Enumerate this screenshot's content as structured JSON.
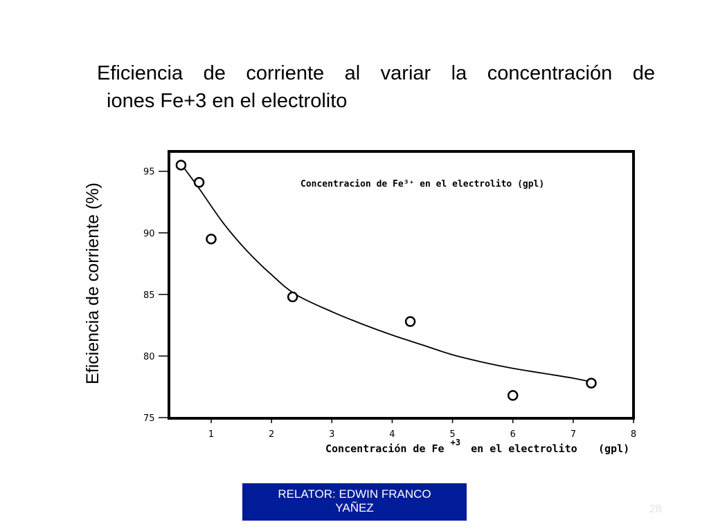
{
  "slide": {
    "title_line1": [
      "Eficiencia",
      "de",
      "corriente",
      "al",
      "variar",
      "la",
      "concentración",
      "de"
    ],
    "title_line2": "iones Fe+3 en el electrolito",
    "footer": [
      "RELATOR: EDWIN FRANCO",
      "YAÑEZ"
    ],
    "page_number": "28"
  },
  "chart_data": {
    "type": "scatter",
    "title": "Concentracion de Fe³⁺ en el electrolito (gpl)",
    "xlabel": "Concentración de Fe",
    "xlabel_superscript": "+3",
    "xlabel_suffix": "en el electrolito",
    "xlabel_unit": "(gpl)",
    "ylabel": "Eficiencia de corriente (%)",
    "xlim": [
      0.3,
      8
    ],
    "ylim": [
      75,
      96.5
    ],
    "x_ticks": [
      1,
      2,
      3,
      4,
      5,
      6,
      7,
      8
    ],
    "y_ticks": [
      75,
      80,
      85,
      90,
      95
    ],
    "grid": false,
    "series": [
      {
        "values": [
          {
            "x": 0.5,
            "y": 95.5
          },
          {
            "x": 0.8,
            "y": 94.1
          },
          {
            "x": 1.0,
            "y": 89.5
          },
          {
            "x": 2.35,
            "y": 84.8
          },
          {
            "x": 4.3,
            "y": 82.8
          },
          {
            "x": 6.0,
            "y": 76.8
          },
          {
            "x": 7.3,
            "y": 77.8
          }
        ]
      }
    ],
    "fit_curve": [
      {
        "x": 0.5,
        "y": 95.6
      },
      {
        "x": 0.8,
        "y": 93.6
      },
      {
        "x": 1.2,
        "y": 90.8
      },
      {
        "x": 1.6,
        "y": 88.5
      },
      {
        "x": 2.0,
        "y": 86.6
      },
      {
        "x": 2.4,
        "y": 85.0
      },
      {
        "x": 3.0,
        "y": 83.6
      },
      {
        "x": 3.5,
        "y": 82.6
      },
      {
        "x": 4.0,
        "y": 81.7
      },
      {
        "x": 4.5,
        "y": 80.9
      },
      {
        "x": 5.0,
        "y": 80.1
      },
      {
        "x": 5.5,
        "y": 79.5
      },
      {
        "x": 6.0,
        "y": 79.0
      },
      {
        "x": 6.5,
        "y": 78.6
      },
      {
        "x": 7.0,
        "y": 78.2
      },
      {
        "x": 7.3,
        "y": 77.9
      }
    ]
  }
}
